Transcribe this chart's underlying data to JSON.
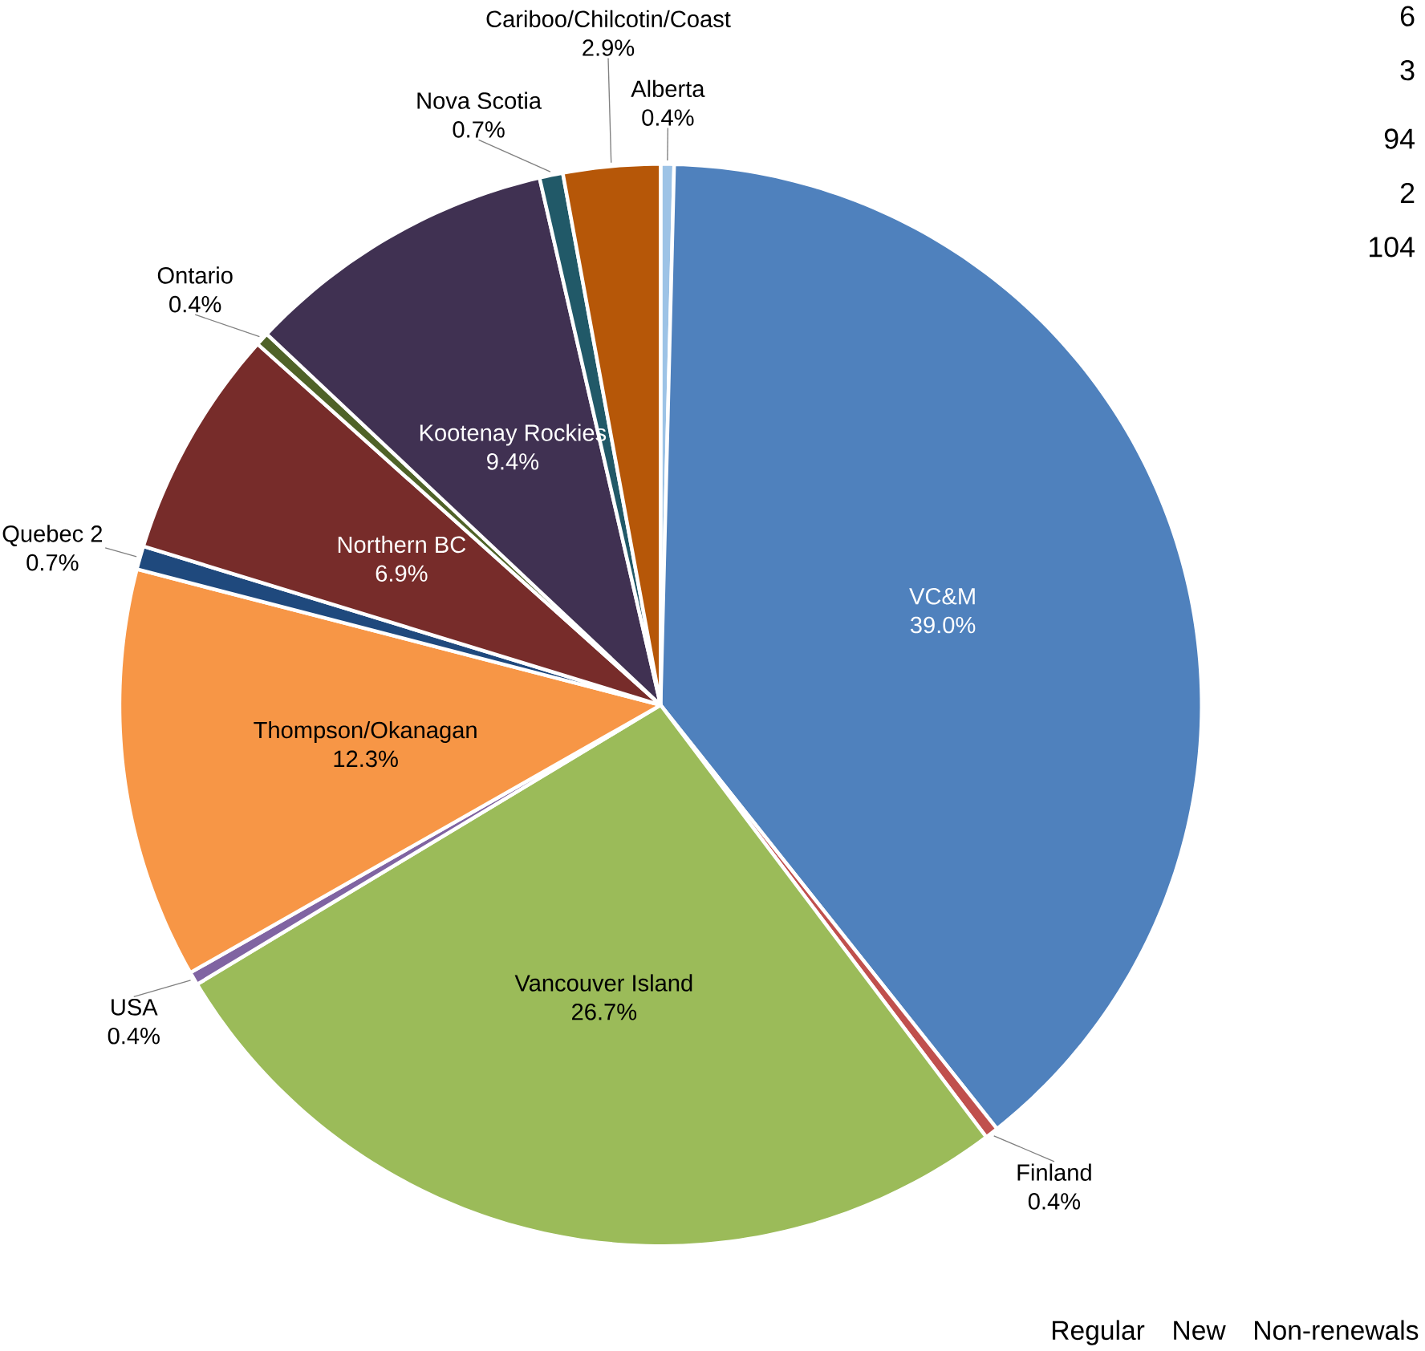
{
  "chart_data": {
    "type": "pie",
    "categories": [
      "Alberta",
      "VC&M",
      "Finland",
      "Vancouver Island",
      "USA",
      "Thompson/Okanagan",
      "Quebec 2",
      "Northern BC",
      "Ontario",
      "Kootenay Rockies",
      "Nova Scotia",
      "Cariboo/Chilcotin/Coast"
    ],
    "values": [
      0.4,
      39.0,
      0.4,
      26.7,
      0.4,
      12.3,
      0.7,
      6.9,
      0.4,
      9.4,
      0.7,
      2.9
    ],
    "value_labels": [
      "0.4%",
      "39.0%",
      "0.4%",
      "26.7%",
      "0.4%",
      "12.3%",
      "0.7%",
      "6.9%",
      "0.4%",
      "9.4%",
      "0.7%",
      "2.9%"
    ],
    "colors": [
      "#9dc3e6",
      "#4f81bd",
      "#c0504d",
      "#9bbb59",
      "#8064a2",
      "#f79646",
      "#1f497d",
      "#772c2a",
      "#4f6228",
      "#403152",
      "#215968",
      "#b65708"
    ],
    "annotations": [
      "6",
      "3",
      "94",
      "2",
      "104",
      "Regular",
      "New",
      "Non-renewals"
    ]
  }
}
